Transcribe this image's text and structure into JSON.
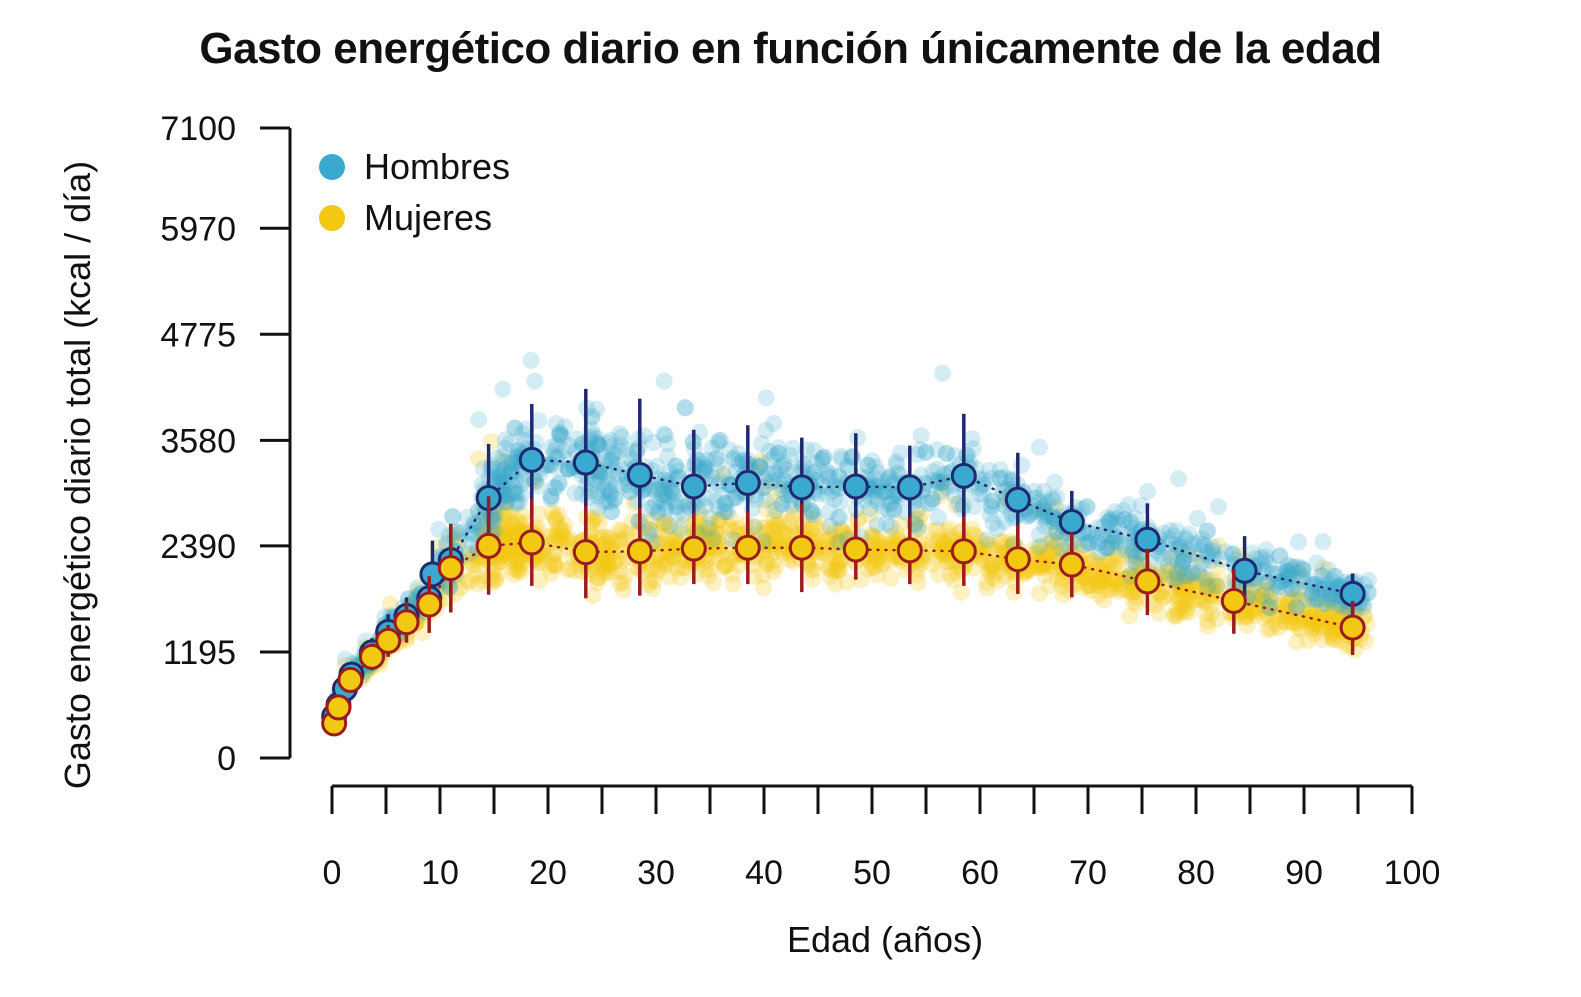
{
  "chart_data": {
    "type": "scatter",
    "title": "Gasto energético diario en función únicamente de la edad",
    "xlabel": "Edad (años)",
    "ylabel": "Gasto energético diario total (kcal / día)",
    "xlim": [
      0,
      100
    ],
    "ylim": [
      0,
      7100
    ],
    "xticks": [
      0,
      10,
      20,
      30,
      40,
      50,
      60,
      70,
      80,
      90,
      100
    ],
    "yticks": [
      0,
      1195,
      2390,
      3580,
      4775,
      5970,
      7100
    ],
    "legend_position": "top-left",
    "series": [
      {
        "name": "Hombres",
        "color": "#3aa9cf",
        "mean_color": "#1f2a6e",
        "means": [
          {
            "x": 0.2,
            "y": 470,
            "lo": 380,
            "hi": 560
          },
          {
            "x": 0.6,
            "y": 600,
            "lo": 490,
            "hi": 710
          },
          {
            "x": 1.2,
            "y": 780,
            "lo": 660,
            "hi": 900
          },
          {
            "x": 1.8,
            "y": 940,
            "lo": 800,
            "hi": 1080
          },
          {
            "x": 3.7,
            "y": 1190,
            "lo": 1030,
            "hi": 1350
          },
          {
            "x": 5.2,
            "y": 1420,
            "lo": 1220,
            "hi": 1620
          },
          {
            "x": 6.9,
            "y": 1600,
            "lo": 1390,
            "hi": 1810
          },
          {
            "x": 9.0,
            "y": 1800,
            "lo": 1550,
            "hi": 2060
          },
          {
            "x": 9.3,
            "y": 2070,
            "lo": 1680,
            "hi": 2450
          },
          {
            "x": 11.0,
            "y": 2230,
            "lo": 1850,
            "hi": 2620
          },
          {
            "x": 14.5,
            "y": 2930,
            "lo": 2320,
            "hi": 3540
          },
          {
            "x": 18.5,
            "y": 3360,
            "lo": 2730,
            "hi": 3990
          },
          {
            "x": 23.5,
            "y": 3330,
            "lo": 2520,
            "hi": 4160
          },
          {
            "x": 28.5,
            "y": 3190,
            "lo": 2340,
            "hi": 4050
          },
          {
            "x": 33.5,
            "y": 3060,
            "lo": 2450,
            "hi": 3700
          },
          {
            "x": 38.5,
            "y": 3100,
            "lo": 2470,
            "hi": 3750
          },
          {
            "x": 43.5,
            "y": 3050,
            "lo": 2470,
            "hi": 3610
          },
          {
            "x": 48.5,
            "y": 3060,
            "lo": 2470,
            "hi": 3660
          },
          {
            "x": 53.5,
            "y": 3050,
            "lo": 2580,
            "hi": 3520
          },
          {
            "x": 58.5,
            "y": 3180,
            "lo": 2470,
            "hi": 3880
          },
          {
            "x": 63.5,
            "y": 2910,
            "lo": 2390,
            "hi": 3440
          },
          {
            "x": 68.5,
            "y": 2660,
            "lo": 2320,
            "hi": 3010
          },
          {
            "x": 75.5,
            "y": 2460,
            "lo": 2060,
            "hi": 2870
          },
          {
            "x": 84.5,
            "y": 2110,
            "lo": 1720,
            "hi": 2500
          },
          {
            "x": 94.5,
            "y": 1850,
            "lo": 1610,
            "hi": 2080
          }
        ]
      },
      {
        "name": "Mujeres",
        "color": "#f2c811",
        "mean_color": "#9b1c1c",
        "means": [
          {
            "x": 0.2,
            "y": 390,
            "lo": 310,
            "hi": 470
          },
          {
            "x": 0.6,
            "y": 570,
            "lo": 470,
            "hi": 670
          },
          {
            "x": 1.7,
            "y": 880,
            "lo": 760,
            "hi": 1000
          },
          {
            "x": 3.7,
            "y": 1140,
            "lo": 990,
            "hi": 1290
          },
          {
            "x": 5.2,
            "y": 1320,
            "lo": 1140,
            "hi": 1500
          },
          {
            "x": 6.9,
            "y": 1530,
            "lo": 1300,
            "hi": 1760
          },
          {
            "x": 9.0,
            "y": 1730,
            "lo": 1410,
            "hi": 2050
          },
          {
            "x": 11.0,
            "y": 2140,
            "lo": 1640,
            "hi": 2640
          },
          {
            "x": 14.5,
            "y": 2390,
            "lo": 1840,
            "hi": 2950
          },
          {
            "x": 18.5,
            "y": 2430,
            "lo": 1940,
            "hi": 2920
          },
          {
            "x": 23.5,
            "y": 2320,
            "lo": 1800,
            "hi": 2840
          },
          {
            "x": 28.5,
            "y": 2330,
            "lo": 1830,
            "hi": 2820
          },
          {
            "x": 33.5,
            "y": 2360,
            "lo": 1960,
            "hi": 2760
          },
          {
            "x": 38.5,
            "y": 2370,
            "lo": 1960,
            "hi": 2780
          },
          {
            "x": 43.5,
            "y": 2370,
            "lo": 1870,
            "hi": 2860
          },
          {
            "x": 48.5,
            "y": 2350,
            "lo": 2010,
            "hi": 2700
          },
          {
            "x": 53.5,
            "y": 2340,
            "lo": 1960,
            "hi": 2720
          },
          {
            "x": 58.5,
            "y": 2330,
            "lo": 1940,
            "hi": 2720
          },
          {
            "x": 63.5,
            "y": 2240,
            "lo": 1850,
            "hi": 2630
          },
          {
            "x": 68.5,
            "y": 2180,
            "lo": 1810,
            "hi": 2540
          },
          {
            "x": 75.5,
            "y": 1990,
            "lo": 1610,
            "hi": 2360
          },
          {
            "x": 83.5,
            "y": 1770,
            "lo": 1400,
            "hi": 2130
          },
          {
            "x": 94.5,
            "y": 1470,
            "lo": 1160,
            "hi": 1770
          }
        ]
      }
    ],
    "note": "Individual data points are semi-transparent; summary markers are bin means with vertical ranges."
  }
}
